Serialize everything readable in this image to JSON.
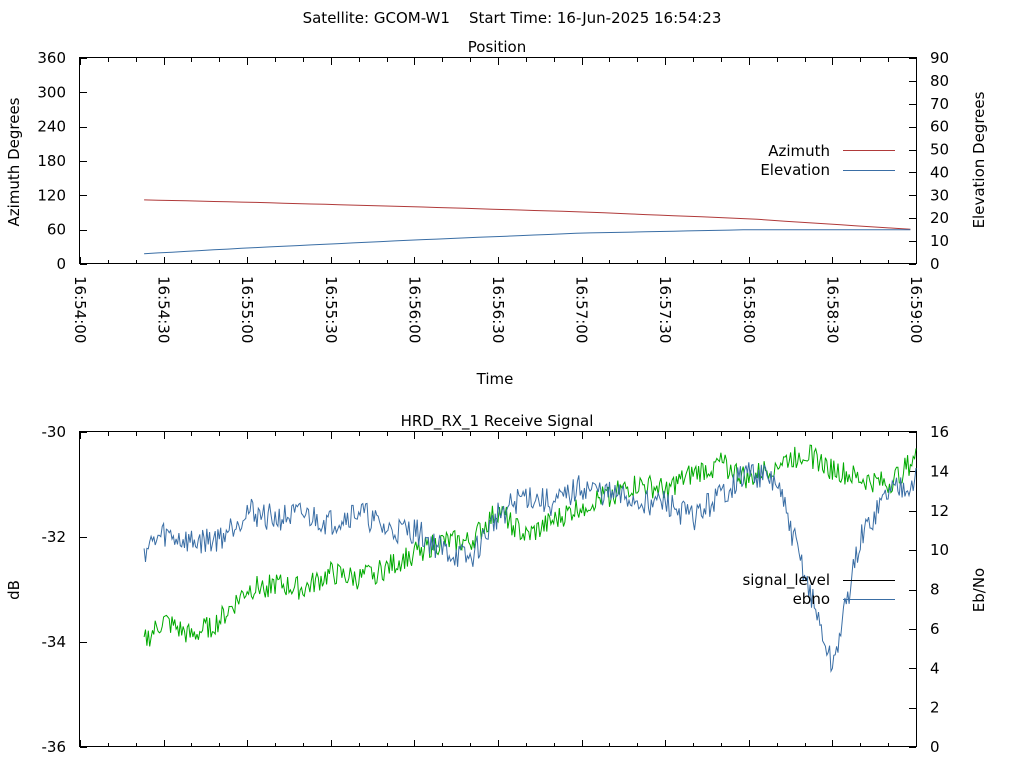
{
  "header": {
    "text": "Satellite: GCOM-W1    Start Time: 16-Jun-2025 16:54:23"
  },
  "chart_data": [
    {
      "type": "line",
      "title": "Position",
      "xlabel": "Time",
      "ylabel_left": "Azimuth Degrees",
      "ylabel_right": "Elevation Degrees",
      "x_ticks": [
        "16:54:00",
        "16:54:30",
        "16:55:00",
        "16:55:30",
        "16:56:00",
        "16:56:30",
        "16:57:00",
        "16:57:30",
        "16:58:00",
        "16:58:30",
        "16:59:00"
      ],
      "x_range_seconds": [
        0,
        300
      ],
      "ylim_left": [
        0,
        360
      ],
      "ylim_right": [
        0,
        90
      ],
      "yticks_left": [
        0,
        60,
        120,
        180,
        240,
        300,
        360
      ],
      "yticks_right": [
        0,
        10,
        20,
        30,
        40,
        50,
        60,
        70,
        80,
        90
      ],
      "legend_position": "right",
      "series": [
        {
          "name": "Azimuth",
          "axis": "left",
          "color": "#b03a3a",
          "x_start_time": "16:54:23",
          "x_seconds": [
            23,
            60,
            120,
            180,
            240,
            300
          ],
          "values": [
            112,
            108,
            100,
            91,
            79,
            60
          ]
        },
        {
          "name": "Elevation",
          "axis": "right",
          "color": "#3a6ea5",
          "x_seconds": [
            23,
            60,
            120,
            180,
            240,
            300
          ],
          "values": [
            4.5,
            7,
            10.5,
            13.5,
            15,
            15
          ]
        }
      ]
    },
    {
      "type": "line",
      "title": "HRD_RX_1 Receive Signal",
      "ylabel_left": "dB",
      "ylabel_right": "Eb/No",
      "ylim_left": [
        -36,
        -30
      ],
      "ylim_right": [
        0,
        16
      ],
      "yticks_left": [
        -36,
        -34,
        -32,
        -30
      ],
      "yticks_right": [
        0,
        2,
        4,
        6,
        8,
        10,
        12,
        14,
        16
      ],
      "x_range_seconds": [
        0,
        300
      ],
      "legend_position": "right",
      "series": [
        {
          "name": "signal_level",
          "axis": "left",
          "color": "#00aa00",
          "legend_color": "#000000",
          "x_seconds": [
            23,
            30,
            40,
            50,
            60,
            70,
            80,
            90,
            100,
            110,
            120,
            130,
            140,
            150,
            160,
            170,
            180,
            190,
            200,
            210,
            220,
            230,
            240,
            250,
            260,
            270,
            280,
            290,
            300
          ],
          "values": [
            -34.0,
            -33.6,
            -33.9,
            -33.6,
            -33.0,
            -32.9,
            -33.0,
            -32.7,
            -32.8,
            -32.6,
            -32.3,
            -32.1,
            -32.1,
            -31.5,
            -32.0,
            -31.7,
            -31.4,
            -31.2,
            -31.0,
            -31.1,
            -30.8,
            -30.6,
            -30.9,
            -30.6,
            -30.4,
            -30.7,
            -30.9,
            -31.0,
            -30.5
          ]
        },
        {
          "name": "ebno",
          "axis": "right",
          "color": "#3a6ea5",
          "x_seconds": [
            23,
            30,
            40,
            50,
            60,
            70,
            80,
            90,
            100,
            110,
            120,
            130,
            140,
            150,
            160,
            170,
            180,
            190,
            200,
            210,
            220,
            230,
            240,
            250,
            260,
            270,
            280,
            290,
            300
          ],
          "values": [
            10.0,
            10.8,
            10.4,
            10.6,
            12.0,
            11.6,
            11.8,
            11.4,
            12.0,
            11.0,
            11.0,
            10.0,
            9.5,
            11.8,
            12.8,
            12.3,
            13.2,
            12.8,
            12.5,
            12.4,
            11.6,
            12.8,
            14.0,
            13.4,
            8.8,
            4.0,
            10.5,
            13.0,
            13.6
          ]
        }
      ]
    }
  ]
}
